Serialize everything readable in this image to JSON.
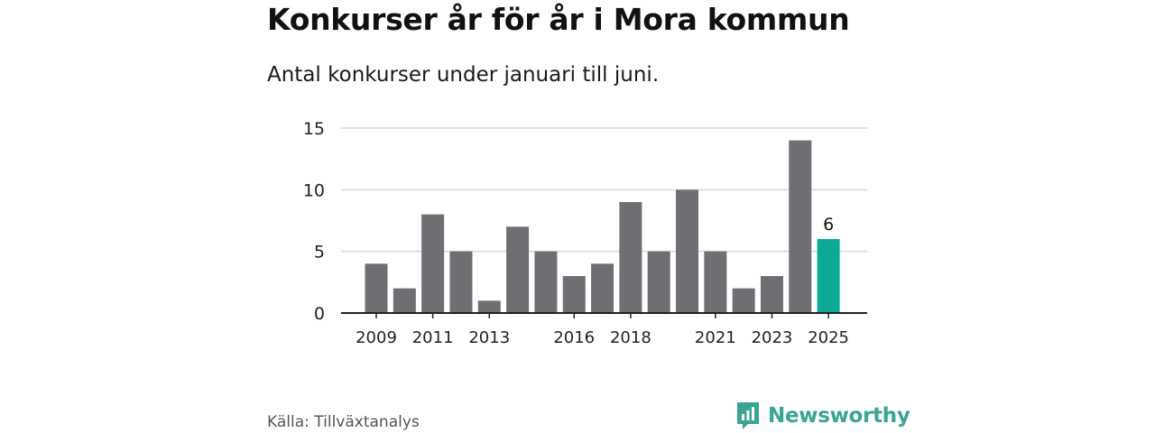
{
  "header": {
    "title": "Konkurser år för år i Mora kommun",
    "subtitle": "Antal konkurser under januari till juni."
  },
  "footer": {
    "source": "Källa: Tillväxtanalys",
    "brand": "Newsworthy",
    "brand_icon": "newsworthy-logo-icon"
  },
  "colors": {
    "bar": "#6f6e73",
    "highlight": "#0ca996",
    "grid": "#d9d9d9",
    "axis": "#222222",
    "brand": "#3aa593"
  },
  "chart_data": {
    "type": "bar",
    "title": "Konkurser år för år i Mora kommun",
    "subtitle": "Antal konkurser under januari till juni.",
    "categories": [
      "2009",
      "2010",
      "2011",
      "2012",
      "2013",
      "2014",
      "2015",
      "2016",
      "2017",
      "2018",
      "2019",
      "2020",
      "2021",
      "2022",
      "2023",
      "2024",
      "2025"
    ],
    "values": [
      4,
      2,
      8,
      5,
      1,
      7,
      5,
      3,
      4,
      9,
      5,
      10,
      5,
      2,
      3,
      14,
      6
    ],
    "x_tick_labels": [
      "2009",
      "2011",
      "2013",
      "2016",
      "2018",
      "2021",
      "2023",
      "2025"
    ],
    "y_ticks": [
      0,
      5,
      10,
      15
    ],
    "ylim": [
      0,
      15
    ],
    "highlight": {
      "category": "2025",
      "label": "6"
    },
    "xlabel": "",
    "ylabel": "",
    "grid": true
  }
}
